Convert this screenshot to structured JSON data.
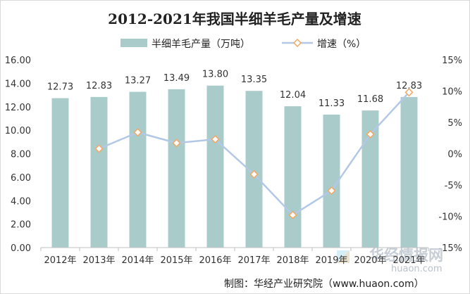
{
  "chart_data": {
    "type": "bar+line",
    "title": "2012-2021年我国半细羊毛产量及增速",
    "categories": [
      "2012年",
      "2013年",
      "2014年",
      "2015年",
      "2016年",
      "2017年",
      "2018年",
      "2019年",
      "2020年",
      "2021年"
    ],
    "series": [
      {
        "name": "半细羊毛产量（万吨）",
        "type": "bar",
        "axis": "left",
        "color": "#a9cccb",
        "values": [
          12.73,
          12.83,
          13.27,
          13.49,
          13.8,
          13.35,
          12.04,
          11.33,
          11.68,
          12.83
        ],
        "labels": [
          "12.73",
          "12.83",
          "13.27",
          "13.49",
          "13.80",
          "13.35",
          "12.04",
          "11.33",
          "11.68",
          "12.83"
        ]
      },
      {
        "name": "增速（%）",
        "type": "line",
        "axis": "right",
        "color": "#b3c8e6",
        "marker_color": "#f2a863",
        "values": [
          null,
          0.8,
          3.4,
          1.7,
          2.3,
          -3.3,
          -9.8,
          -5.9,
          3.1,
          9.8
        ]
      }
    ],
    "y_left": {
      "range": [
        0,
        16
      ],
      "ticks": [
        0,
        2,
        4,
        6,
        8,
        10,
        12,
        14,
        16
      ],
      "tick_labels": [
        "0.00",
        "2.00",
        "4.00",
        "6.00",
        "8.00",
        "10.00",
        "12.00",
        "14.00",
        "16.00"
      ]
    },
    "y_right": {
      "range": [
        -15,
        15
      ],
      "ticks": [
        -15,
        -10,
        -5,
        0,
        5,
        10,
        15
      ],
      "tick_labels": [
        "-15%",
        "-10%",
        "-5%",
        "0%",
        "5%",
        "10%",
        "15%"
      ]
    },
    "legend_position": "top",
    "grid": false
  },
  "footer": {
    "source": "制图：华经产业研究院（www.huaon.com）"
  },
  "watermark": {
    "name": "华经情报网",
    "url": "huaon.com"
  }
}
